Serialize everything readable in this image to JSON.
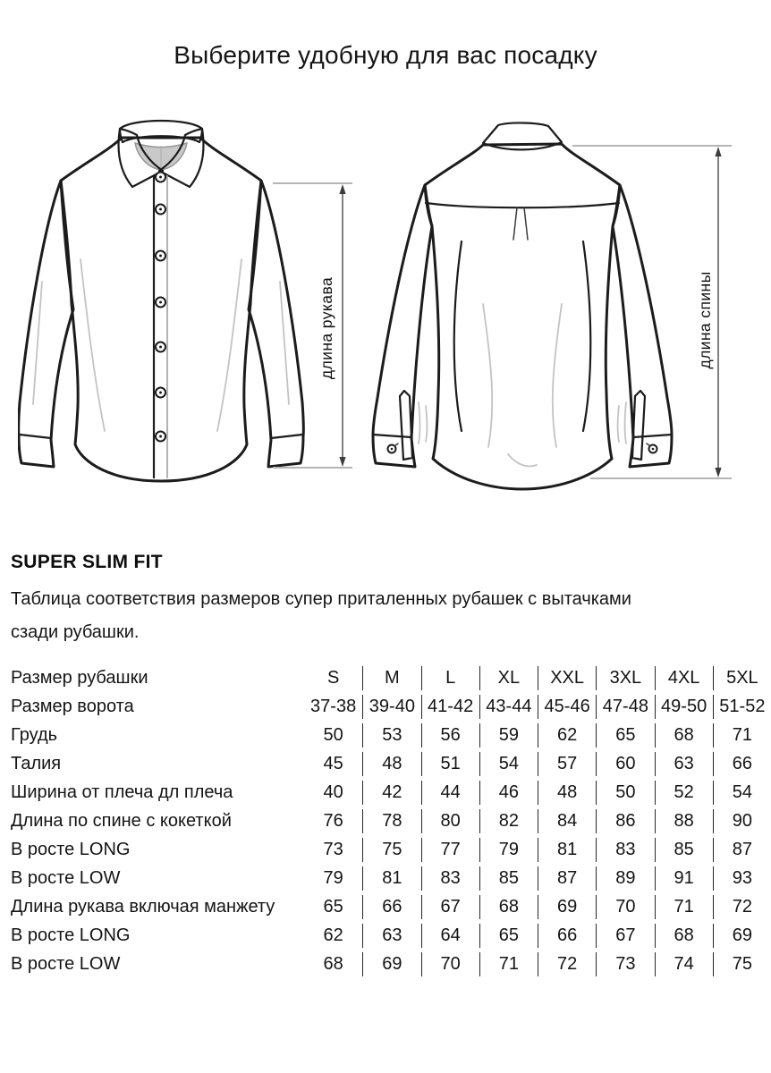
{
  "page": {
    "title": "Выберите удобную для вас посадку"
  },
  "diagram": {
    "sleeve_length_label": "длина рукава",
    "back_length_label": "длина спины"
  },
  "section": {
    "heading": "SUPER SLIM FIT",
    "description_line1": "Таблица соответствия размеров супер приталенных рубашек с вытачками",
    "description_line2": "сзади рубашки."
  },
  "size_table": {
    "rows": [
      {
        "label": "Размер рубашки",
        "values": [
          "S",
          "M",
          "L",
          "XL",
          "XXL",
          "3XL",
          "4XL",
          "5XL"
        ]
      },
      {
        "label": "Размер ворота",
        "values": [
          "37-38",
          "39-40",
          "41-42",
          "43-44",
          "45-46",
          "47-48",
          "49-50",
          "51-52"
        ]
      },
      {
        "label": "Грудь",
        "values": [
          "50",
          "53",
          "56",
          "59",
          "62",
          "65",
          "68",
          "71"
        ]
      },
      {
        "label": "Талия",
        "values": [
          "45",
          "48",
          "51",
          "54",
          "57",
          "60",
          "63",
          "66"
        ]
      },
      {
        "label": "Ширина от плеча дл плеча",
        "values": [
          "40",
          "42",
          "44",
          "46",
          "48",
          "50",
          "52",
          "54"
        ]
      },
      {
        "label": "Длина по спине с кокеткой",
        "values": [
          "76",
          "78",
          "80",
          "82",
          "84",
          "86",
          "88",
          "90"
        ]
      },
      {
        "label": "В росте LONG",
        "values": [
          "73",
          "75",
          "77",
          "79",
          "81",
          "83",
          "85",
          "87"
        ]
      },
      {
        "label": "В росте LOW",
        "values": [
          "79",
          "81",
          "83",
          "85",
          "87",
          "89",
          "91",
          "93"
        ]
      },
      {
        "label": "Длина рукава включая манжету",
        "values": [
          "65",
          "66",
          "67",
          "68",
          "69",
          "70",
          "71",
          "72"
        ]
      },
      {
        "label": "В росте LONG",
        "values": [
          "62",
          "63",
          "64",
          "65",
          "66",
          "67",
          "68",
          "69"
        ]
      },
      {
        "label": "В росте LOW",
        "values": [
          "68",
          "69",
          "70",
          "71",
          "72",
          "73",
          "74",
          "75"
        ]
      }
    ]
  }
}
